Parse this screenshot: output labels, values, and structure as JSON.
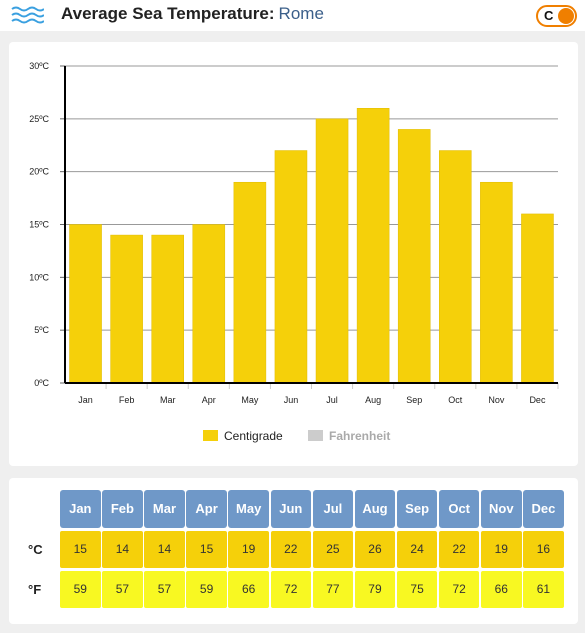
{
  "header": {
    "title": "Average Sea Temperature:",
    "city": "Rome",
    "unit_toggle_label": "C",
    "icon": "waves-icon"
  },
  "colors": {
    "centigrade": "#f5d00a",
    "fahrenheit": "#cccccc",
    "table_header": "#6f98c8",
    "celsius_row": "#f5d00a",
    "fahrenheit_row": "#f8f822",
    "toggle_accent": "#f07f00"
  },
  "chart_data": {
    "type": "bar",
    "categories": [
      "Jan",
      "Feb",
      "Mar",
      "Apr",
      "May",
      "Jun",
      "Jul",
      "Aug",
      "Sep",
      "Oct",
      "Nov",
      "Dec"
    ],
    "series": [
      {
        "name": "Centigrade",
        "values": [
          15,
          14,
          14,
          15,
          19,
          22,
          25,
          26,
          24,
          22,
          19,
          16
        ]
      }
    ],
    "yticks": [
      "0ºC",
      "5ºC",
      "10ºC",
      "15ºC",
      "20ºC",
      "25ºC",
      "30ºC"
    ],
    "ylim": [
      0,
      30
    ],
    "grid": true,
    "legend": [
      "Centigrade",
      "Fahrenheit"
    ],
    "legend_placement": "bottom-center"
  },
  "table": {
    "months": [
      "Jan",
      "Feb",
      "Mar",
      "Apr",
      "May",
      "Jun",
      "Jul",
      "Aug",
      "Sep",
      "Oct",
      "Nov",
      "Dec"
    ],
    "celsius_label": "°C",
    "fahrenheit_label": "°F",
    "celsius": [
      "15",
      "14",
      "14",
      "15",
      "19",
      "22",
      "25",
      "26",
      "24",
      "22",
      "19",
      "16"
    ],
    "fahrenheit": [
      "59",
      "57",
      "57",
      "59",
      "66",
      "72",
      "77",
      "79",
      "75",
      "72",
      "66",
      "61"
    ]
  }
}
